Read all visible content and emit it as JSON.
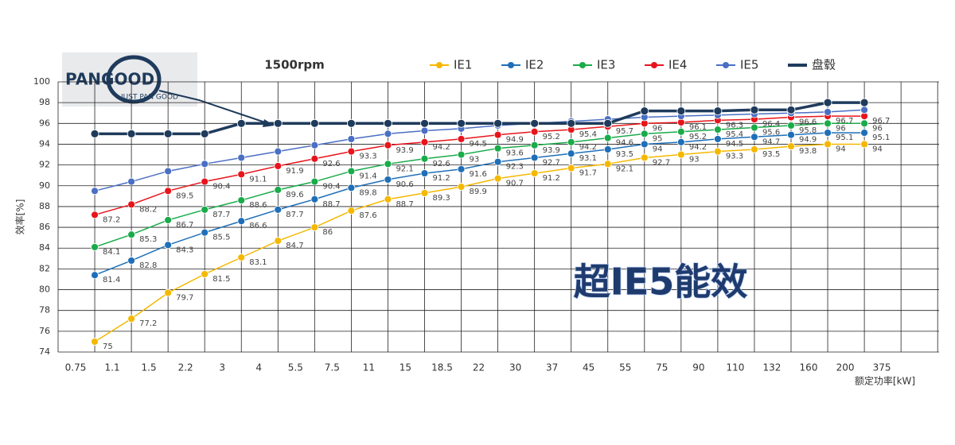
{
  "chart_data": {
    "type": "line",
    "title": "1500rpm",
    "y_label": "效率[%]",
    "x_label": "额定功率[kW]",
    "annotation": "超IE5能效",
    "logo": {
      "name": "PANGOOD",
      "tagline": "JUST PAN GOOD"
    },
    "categories": [
      "0.75",
      "1.1",
      "1.5",
      "2.2",
      "3",
      "4",
      "5.5",
      "7.5",
      "11",
      "15",
      "18.5",
      "22",
      "30",
      "37",
      "45",
      "55",
      "75",
      "90",
      "110",
      "132",
      "160",
      "200",
      "375"
    ],
    "ylim": [
      74,
      100
    ],
    "yticks": [
      74,
      76,
      78,
      80,
      82,
      84,
      86,
      88,
      90,
      92,
      94,
      96,
      98,
      100
    ],
    "grid": true,
    "legend": "top",
    "series": [
      {
        "name": "IE1",
        "color": "#f5b800",
        "labels": true,
        "values": [
          null,
          75,
          77.2,
          79.7,
          81.5,
          83.1,
          84.7,
          86,
          87.6,
          88.7,
          89.3,
          89.9,
          90.7,
          91.2,
          91.7,
          92.1,
          92.7,
          93,
          93.3,
          93.5,
          93.8,
          94,
          94
        ]
      },
      {
        "name": "IE2",
        "color": "#1f6fb8",
        "labels": true,
        "values": [
          null,
          81.4,
          82.8,
          84.3,
          85.5,
          86.6,
          87.7,
          88.7,
          89.8,
          90.6,
          91.2,
          91.6,
          92.3,
          92.7,
          93.1,
          93.5,
          94,
          94.2,
          94.5,
          94.7,
          94.9,
          95.1,
          95.1
        ]
      },
      {
        "name": "IE3",
        "color": "#1aab4a",
        "labels": true,
        "values": [
          null,
          84.1,
          85.3,
          86.7,
          87.7,
          88.6,
          89.6,
          90.4,
          91.4,
          92.1,
          92.6,
          93,
          93.6,
          93.9,
          94.2,
          94.6,
          95,
          95.2,
          95.4,
          95.6,
          95.8,
          96,
          96
        ]
      },
      {
        "name": "IE4",
        "color": "#e8141b",
        "labels": true,
        "values": [
          null,
          87.2,
          88.2,
          89.5,
          90.4,
          91.1,
          91.9,
          92.6,
          93.3,
          93.9,
          94.2,
          94.5,
          94.9,
          95.2,
          95.4,
          95.7,
          96,
          96.1,
          96.3,
          96.4,
          96.6,
          96.7,
          96.7
        ]
      },
      {
        "name": "IE5",
        "color": "#4a6fc4",
        "labels": false,
        "values": [
          null,
          89.5,
          90.4,
          91.4,
          92.1,
          92.7,
          93.3,
          93.9,
          94.5,
          95,
          95.3,
          95.5,
          95.8,
          96,
          96.2,
          96.4,
          96.6,
          96.7,
          96.8,
          96.9,
          97,
          97.1,
          97.3
        ]
      },
      {
        "name": "盘毂",
        "color": "#1f3b5c",
        "labels": false,
        "values": [
          null,
          95,
          95,
          95,
          95,
          96,
          96,
          96,
          96,
          96,
          96,
          96,
          96,
          96,
          96,
          96,
          97.2,
          97.2,
          97.2,
          97.3,
          97.3,
          98,
          98
        ]
      }
    ]
  }
}
